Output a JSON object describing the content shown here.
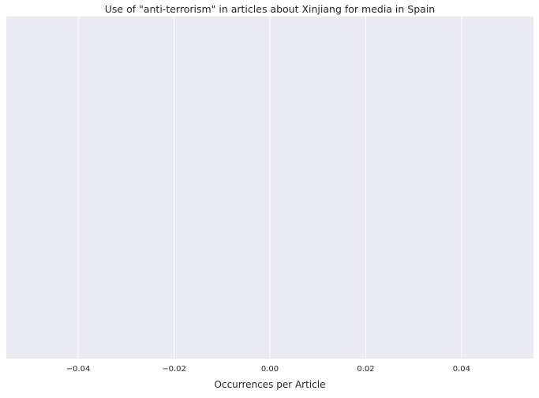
{
  "chart_data": {
    "type": "bar",
    "title": "Use of \"anti-terrorism\" in articles about Xinjiang for media in Spain",
    "xlabel": "Occurrences per Article",
    "ylabel": "",
    "orientation": "horizontal",
    "categories": [],
    "values": [],
    "xlim": [
      -0.055,
      0.055
    ],
    "xticks": [
      -0.04,
      -0.02,
      0.0,
      0.02,
      0.04
    ],
    "xtick_labels": [
      "−0.04",
      "−0.02",
      "0.00",
      "0.02",
      "0.04"
    ],
    "grid": true,
    "legend": "none",
    "colors": {
      "plot_background": "#eaeaf2",
      "grid": "#ffffff",
      "text": "#262626"
    }
  }
}
